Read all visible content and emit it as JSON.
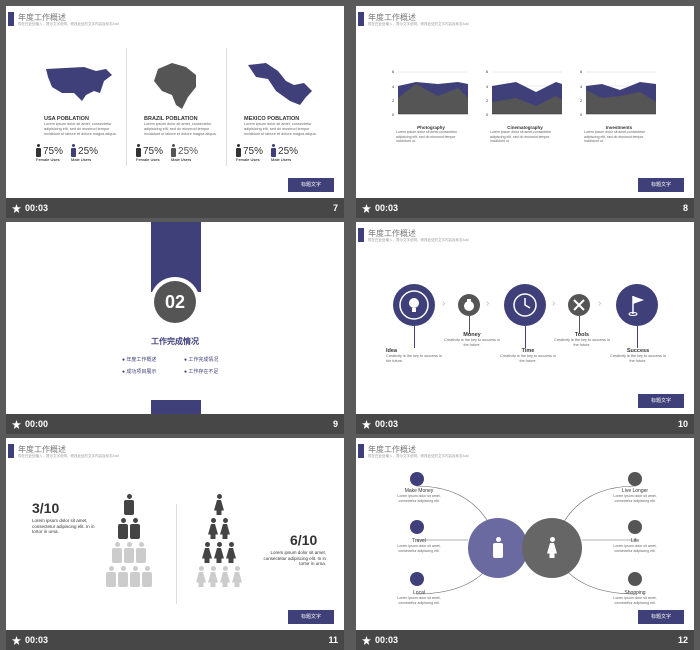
{
  "header_title": "年度工作概述",
  "header_sub": "现在在此处输入，提示文字说明，修改此处的文字内容及标志Add",
  "button_label": "标题文字",
  "lorem_short": "Lorem ipsum dolor sit amet, consectetur adipisicing elit, sed do eiusmod tempor incididunt ut labore et dolore magna aliqua.",
  "slides": [
    {
      "time": "00:03",
      "num": "7",
      "regions": [
        {
          "name": "USA POBLATION",
          "female": "75%",
          "male": "25%"
        },
        {
          "name": "BRAZIL POBLATION",
          "female": "75%",
          "male": "25%"
        },
        {
          "name": "MEXICO POBLATION",
          "female": "75%",
          "male": "25%"
        }
      ],
      "female_label": "Female Uses",
      "male_label": "Male Users"
    },
    {
      "time": "00:03",
      "num": "8",
      "charts": [
        "Photography",
        "Cinematography",
        "Investments"
      ],
      "ticks": [
        "6",
        "4",
        "2",
        "0"
      ],
      "desc": "Lorem ipsum dolor sit amet,consectetur adipiscing elit, sed do eiusmod tempor incididunt ut."
    },
    {
      "time": "00:00",
      "num": "9",
      "badge": "02",
      "title": "工作完成情况",
      "items": [
        "年度工作概述",
        "工作完成情况",
        "成功项目展示",
        "工作存在不足"
      ]
    },
    {
      "time": "00:03",
      "num": "10",
      "steps": [
        {
          "label": "Idea",
          "text": "Creativity is the key to success in the future."
        },
        {
          "label": "Money",
          "text": "Creativity is the key to success in the future."
        },
        {
          "label": "Time",
          "text": "Creativity is the key to success in the future."
        },
        {
          "label": "Tools",
          "text": "Creativity is the key to success in the future."
        },
        {
          "label": "Success",
          "text": "Creativity is the key to success in the future."
        }
      ]
    },
    {
      "time": "00:03",
      "num": "11",
      "left_frac": "3/10",
      "right_frac": "6/10",
      "left_text": "Lorem ipsum dolor sit amet, consectetur adipiscing elit. In in tortor in urna.",
      "right_text": "Lorem ipsum dolor sit amet, consectetur adipiscing elit. In in tortor in urna."
    },
    {
      "time": "00:03",
      "num": "12",
      "left_items": [
        "Make Money",
        "Travel",
        "Local"
      ],
      "right_items": [
        "Live Longer",
        "Life",
        "Shopping"
      ],
      "item_text": "Lorem ipsum dolor sit amet, consectetur adipiscing elit."
    }
  ]
}
